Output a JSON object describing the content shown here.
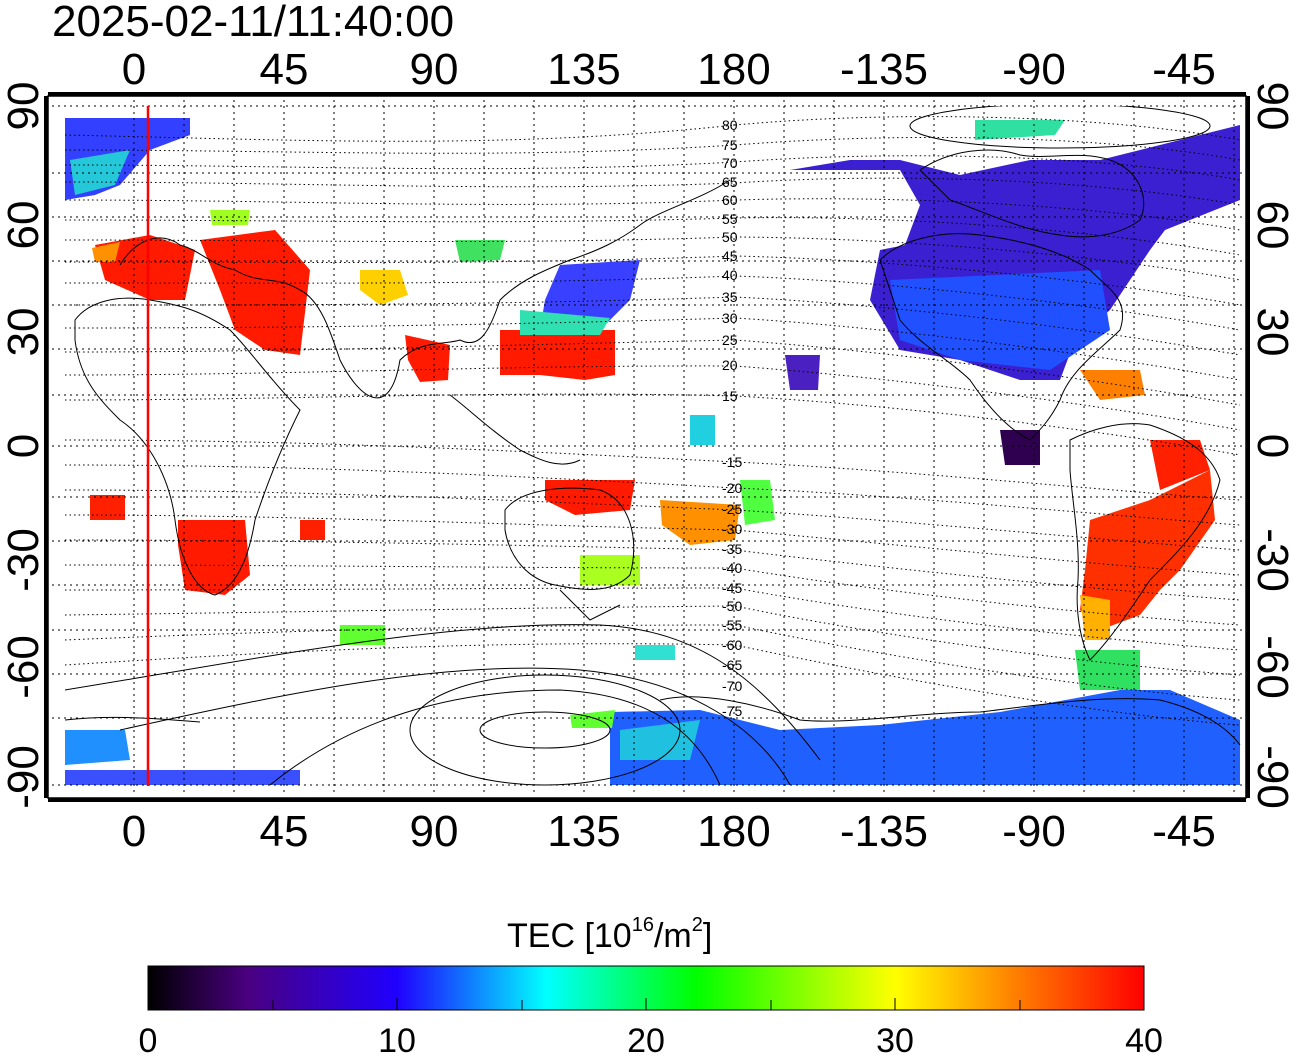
{
  "timestamp": "2025-02-11/11:40:00",
  "map": {
    "top_lon_labels": [
      "0",
      "45",
      "90",
      "135",
      "180",
      "-135",
      "-90",
      "-45"
    ],
    "bottom_lon_labels": [
      "0",
      "45",
      "90",
      "135",
      "180",
      "-135",
      "-90",
      "-45"
    ],
    "left_lat_labels": [
      "90",
      "60",
      "30",
      "0",
      "-30",
      "-60",
      "-90"
    ],
    "right_lat_labels": [
      "90",
      "60",
      "30",
      "0",
      "-30",
      "-60",
      "-90"
    ],
    "magnetic_lat_labels_north": [
      "80",
      "75",
      "70",
      "65",
      "60",
      "55",
      "50",
      "45",
      "40",
      "35",
      "30",
      "25",
      "20",
      "15"
    ],
    "magnetic_lat_labels_south": [
      "-15",
      "-20",
      "-25",
      "-30",
      "-35",
      "-40",
      "-45",
      "-50",
      "-55",
      "-60",
      "-65",
      "-70",
      "-75"
    ],
    "terminator_color": "#ff0000",
    "grid_color": "#000000"
  },
  "colorbar": {
    "title_main": "TEC  [10",
    "title_sup1": "16",
    "title_mid": "/m",
    "title_sup2": "2",
    "title_end": "]",
    "min": 0,
    "max": 40,
    "tick_labels": [
      "0",
      "10",
      "20",
      "30",
      "40"
    ],
    "colors": [
      "#000000",
      "#4a0080",
      "#2000ff",
      "#00ffff",
      "#00ff00",
      "#ffff00",
      "#ff8000",
      "#ff0000"
    ]
  }
}
